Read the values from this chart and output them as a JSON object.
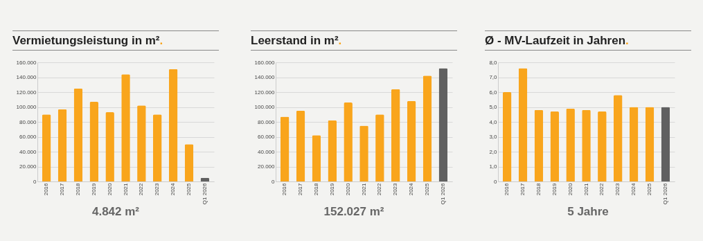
{
  "chart_data": [
    {
      "type": "bar",
      "title": "Vermietungsleistung in m².",
      "categories": [
        "2016",
        "2017",
        "2018",
        "2019",
        "2020",
        "2021",
        "2022",
        "2023",
        "2024",
        "2025",
        "Q1 2026"
      ],
      "values": [
        90000,
        97000,
        125000,
        107000,
        93000,
        144000,
        102000,
        90000,
        151000,
        50000,
        4842
      ],
      "colors": [
        "#f9a51c",
        "#f9a51c",
        "#f9a51c",
        "#f9a51c",
        "#f9a51c",
        "#f9a51c",
        "#f9a51c",
        "#f9a51c",
        "#f9a51c",
        "#f9a51c",
        "#606060"
      ],
      "ylim": [
        0,
        160000
      ],
      "yticks": [
        {
          "value": 0,
          "label": "0"
        },
        {
          "value": 20000,
          "label": "20.000"
        },
        {
          "value": 40000,
          "label": "40.000"
        },
        {
          "value": 60000,
          "label": "60.000"
        },
        {
          "value": 80000,
          "label": "80.000"
        },
        {
          "value": 100000,
          "label": "100.000"
        },
        {
          "value": 120000,
          "label": "120.000"
        },
        {
          "value": 140000,
          "label": "140.000"
        },
        {
          "value": 160000,
          "label": "160.000"
        }
      ],
      "grid": "y",
      "annotations": [
        "4.842 m²"
      ]
    },
    {
      "type": "bar",
      "title": "Leerstand in m².",
      "categories": [
        "2016",
        "2017",
        "2018",
        "2019",
        "2020",
        "2021",
        "2022",
        "2023",
        "2024",
        "2025",
        "Q1 2026"
      ],
      "values": [
        87000,
        95000,
        62000,
        82000,
        106000,
        75000,
        90000,
        124000,
        108000,
        142000,
        152027
      ],
      "colors": [
        "#f9a51c",
        "#f9a51c",
        "#f9a51c",
        "#f9a51c",
        "#f9a51c",
        "#f9a51c",
        "#f9a51c",
        "#f9a51c",
        "#f9a51c",
        "#f9a51c",
        "#606060"
      ],
      "ylim": [
        0,
        160000
      ],
      "yticks": [
        {
          "value": 0,
          "label": "0"
        },
        {
          "value": 20000,
          "label": "20.000"
        },
        {
          "value": 40000,
          "label": "40.000"
        },
        {
          "value": 60000,
          "label": "60.000"
        },
        {
          "value": 80000,
          "label": "80.000"
        },
        {
          "value": 100000,
          "label": "100.000"
        },
        {
          "value": 120000,
          "label": "120.000"
        },
        {
          "value": 140000,
          "label": "140.000"
        },
        {
          "value": 160000,
          "label": "160.000"
        }
      ],
      "grid": "y",
      "annotations": [
        "152.027 m²"
      ]
    },
    {
      "type": "bar",
      "title": "Ø - MV-Laufzeit in Jahren.",
      "categories": [
        "2016",
        "2017",
        "2018",
        "2019",
        "2020",
        "2021",
        "2022",
        "2023",
        "2024",
        "2025",
        "Q1 2026"
      ],
      "values": [
        6.0,
        7.6,
        4.8,
        4.7,
        4.9,
        4.8,
        4.7,
        5.8,
        5.0,
        5.0,
        5
      ],
      "colors": [
        "#f9a51c",
        "#f9a51c",
        "#f9a51c",
        "#f9a51c",
        "#f9a51c",
        "#f9a51c",
        "#f9a51c",
        "#f9a51c",
        "#f9a51c",
        "#f9a51c",
        "#606060"
      ],
      "ylim": [
        0,
        8
      ],
      "yticks": [
        {
          "value": 0,
          "label": "0"
        },
        {
          "value": 1,
          "label": "1,0"
        },
        {
          "value": 2,
          "label": "2,0"
        },
        {
          "value": 3,
          "label": "3,0"
        },
        {
          "value": 4,
          "label": "4,0"
        },
        {
          "value": 5,
          "label": "5,0"
        },
        {
          "value": 6,
          "label": "6,0"
        },
        {
          "value": 7,
          "label": "7,0"
        },
        {
          "value": 8,
          "label": "8,0"
        }
      ],
      "grid": "y",
      "annotations": [
        "5 Jahre"
      ]
    }
  ]
}
